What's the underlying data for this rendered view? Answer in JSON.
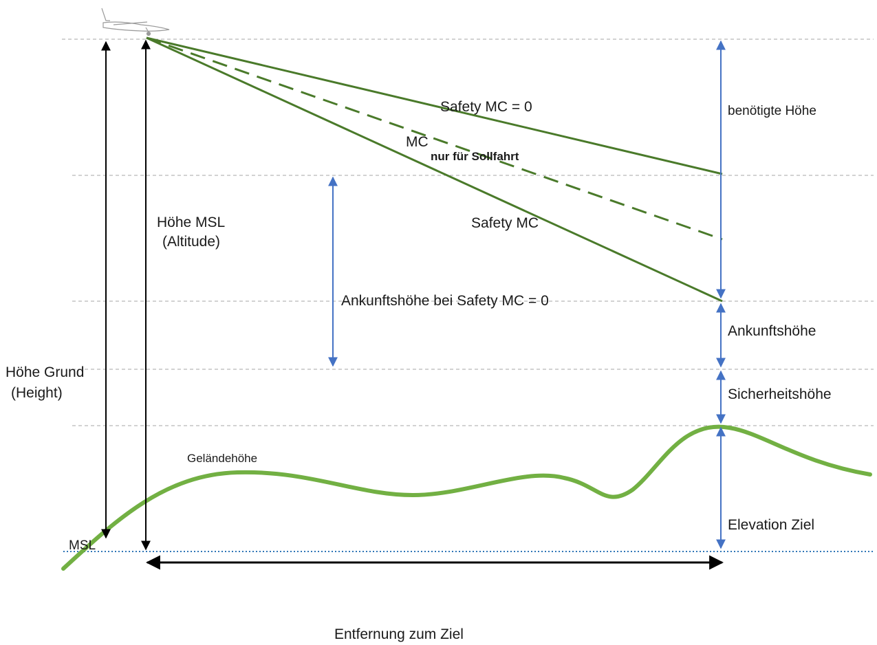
{
  "colors": {
    "glide_line": "#4a7a2a",
    "terrain": "#72b043",
    "blue_arrow": "#4472c4",
    "black_arrow": "#000000",
    "guide_dash": "#a6a6a6",
    "msl_dotted": "#2e75b6"
  },
  "icons": {
    "aircraft": "glider-icon"
  },
  "labels": {
    "safety_mc_zero": "Safety MC = 0",
    "mc": "MC",
    "nur_fuer_sollfahrt": "nur für Sollfahrt",
    "safety_mc": "Safety MC",
    "hoehe_msl": "Höhe MSL",
    "altitude": "(Altitude)",
    "ankunftshoehe_bei_safety_mc_0": "Ankunftshöhe bei Safety MC  = 0",
    "hoehe_grund": "Höhe Grund",
    "height": "(Height)",
    "gelaendehoehe": "Geländehöhe",
    "benoetigte_hoehe": "benötigte Höhe",
    "ankunftshoehe": "Ankunftshöhe",
    "sicherheitshoehe": "Sicherheitshöhe",
    "elevation_ziel": "Elevation Ziel",
    "msl": "MSL",
    "entfernung_zum_ziel": "Entfernung zum Ziel"
  }
}
